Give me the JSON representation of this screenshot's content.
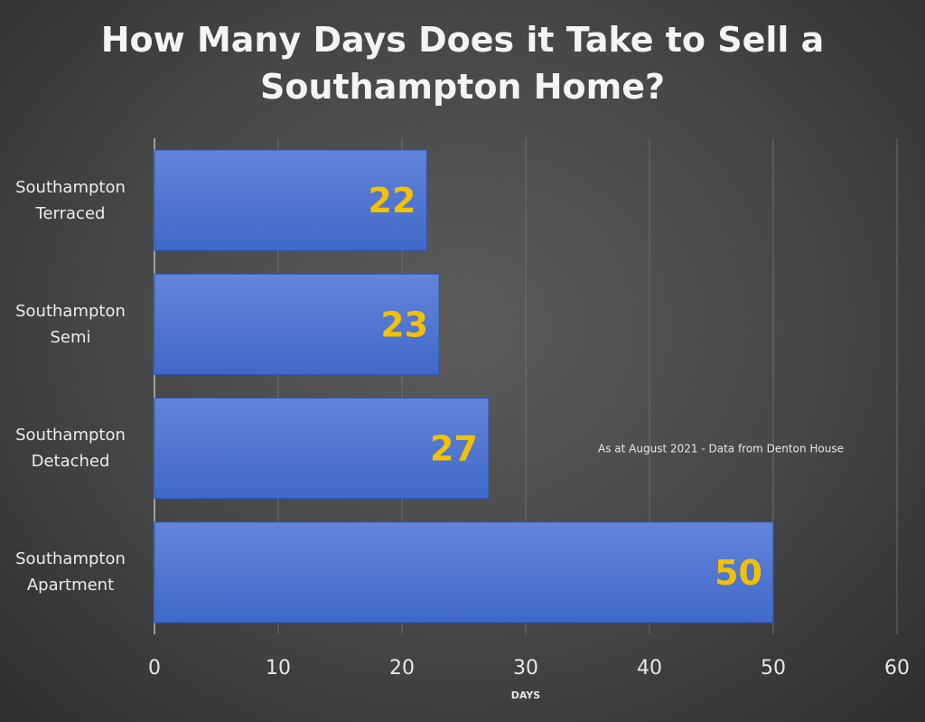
{
  "chart_data": {
    "type": "bar",
    "orientation": "horizontal",
    "title": "How Many Days Does it Take to Sell a Southampton Home?",
    "categories": [
      "Southampton Terraced",
      "Southampton Semi",
      "Southampton Detached",
      "Southampton Apartment"
    ],
    "values": [
      22,
      23,
      27,
      50
    ],
    "color": "#3f69c9",
    "value_label_color": "#f5c000",
    "xlim": [
      0,
      60
    ],
    "xticks": [
      0,
      10,
      20,
      30,
      40,
      50,
      60
    ],
    "x_label": "DAYS",
    "annotation": "As at August 2021 - Data from Denton House",
    "grid": true
  }
}
